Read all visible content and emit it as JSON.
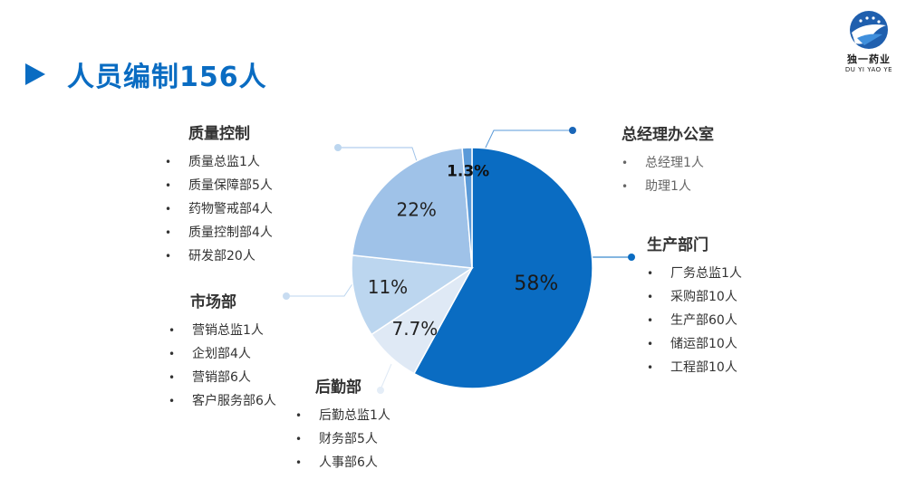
{
  "title": "人员编制156人",
  "logo": {
    "name_cn": "独一药业",
    "name_en": "DU YI YAO YE"
  },
  "chart_data": {
    "type": "pie",
    "slices": [
      {
        "label": "生产部门",
        "value": 58,
        "value_label": "58%",
        "color": "#0a6cc2"
      },
      {
        "label": "后勤部",
        "value": 7.7,
        "value_label": "7.7%",
        "color": "#dfe9f5"
      },
      {
        "label": "市场部",
        "value": 11,
        "value_label": "11%",
        "color": "#bcd6ef"
      },
      {
        "label": "质量控制",
        "value": 22,
        "value_label": "22%",
        "color": "#9fc2e8"
      },
      {
        "label": "总经理办公室",
        "value": 1.3,
        "value_label": "1.3%",
        "color": "#5a9ad8"
      }
    ]
  },
  "groups": {
    "quality": {
      "title": "质量控制",
      "items": [
        "质量总监1人",
        "质量保障部5人",
        "药物警戒部4人",
        "质量控制部4人",
        "研发部20人"
      ]
    },
    "market": {
      "title": "市场部",
      "items": [
        "营销总监1人",
        "企划部4人",
        "营销部6人",
        "客户服务部6人"
      ]
    },
    "logistics": {
      "title": "后勤部",
      "items": [
        "后勤总监1人",
        "财务部5人",
        "人事部6人"
      ]
    },
    "gm_office": {
      "title": "总经理办公室",
      "items": [
        "总经理1人",
        "助理1人"
      ]
    },
    "production": {
      "title": "生产部门",
      "items": [
        "厂务总监1人",
        "采购部10人",
        "生产部60人",
        "储运部10人",
        "工程部10人"
      ]
    }
  }
}
